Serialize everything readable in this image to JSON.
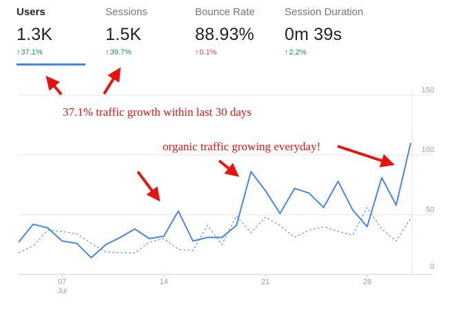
{
  "metrics": [
    {
      "label": "Users",
      "value": "1.3K",
      "delta": "37.1%",
      "trend": "up"
    },
    {
      "label": "Sessions",
      "value": "1.5K",
      "delta": "39.7%",
      "trend": "up"
    },
    {
      "label": "Bounce Rate",
      "value": "88.93%",
      "delta": "0.1%",
      "trend": "up-bad"
    },
    {
      "label": "Session Duration",
      "value": "0m 39s",
      "delta": "2.2%",
      "trend": "up"
    }
  ],
  "annotations": {
    "growth": "37.1% traffic growth within last 30 days",
    "organic": "organic traffic growing everyday!"
  },
  "colors": {
    "primary": "#4285f4",
    "comparison": "#4285f4",
    "positive": "#0f9d58",
    "negative": "#db4437",
    "annotation": "#e8120f"
  },
  "chart_data": {
    "type": "line",
    "ylim": [
      0,
      150
    ],
    "yticks": [
      "0",
      "50",
      "100",
      "150"
    ],
    "x_start_day": 4,
    "xticks": [
      {
        "day": 7,
        "label": "07",
        "sublabel": "Jul"
      },
      {
        "day": 14,
        "label": "14",
        "sublabel": ""
      },
      {
        "day": 21,
        "label": "21",
        "sublabel": ""
      },
      {
        "day": 28,
        "label": "28",
        "sublabel": ""
      }
    ],
    "series": [
      {
        "style": "solid",
        "values": [
          27,
          42,
          39,
          28,
          26,
          14,
          25,
          31,
          38,
          30,
          32,
          53,
          28,
          31,
          31,
          41,
          86,
          70,
          51,
          72,
          68,
          56,
          78,
          54,
          40,
          81,
          58,
          110
        ]
      },
      {
        "style": "dashed",
        "values": [
          18,
          24,
          37,
          36,
          34,
          26,
          19,
          18,
          18,
          27,
          30,
          21,
          20,
          41,
          25,
          49,
          35,
          48,
          41,
          31,
          37,
          40,
          36,
          33,
          56,
          38,
          28,
          47
        ]
      }
    ]
  }
}
